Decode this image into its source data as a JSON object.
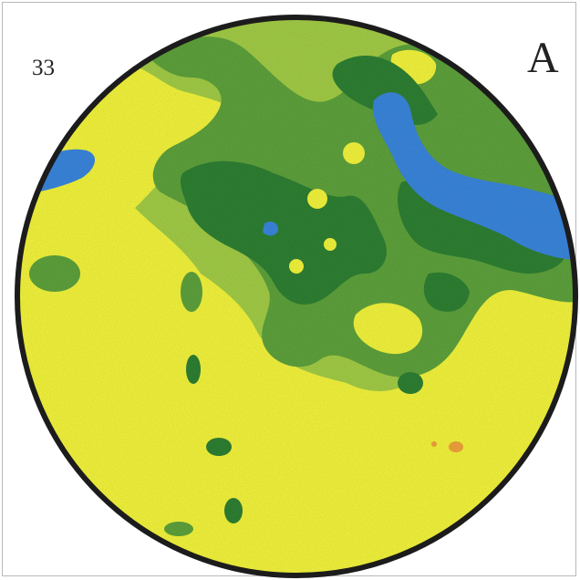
{
  "figure": {
    "panel_number": "33",
    "panel_letter": "A"
  },
  "colors": {
    "yellow": "#f4f53c",
    "light_green": "#a3cd46",
    "mid_green": "#5ea23c",
    "dark_green": "#2e8033",
    "blue": "#3a86dd",
    "deep_blue": "#2d6fd3",
    "orange": "#f2a33a",
    "outline": "#1c1c1c"
  }
}
